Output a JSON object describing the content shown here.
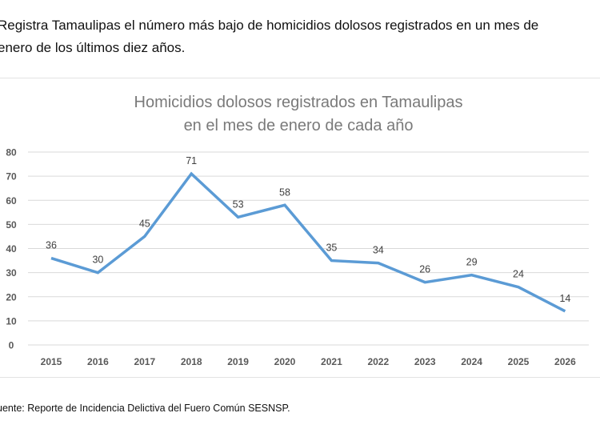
{
  "heading": {
    "line1": "Registra Tamaulipas el número más bajo de homicidios dolosos registrados en un mes de",
    "line2": "enero de los últimos diez años."
  },
  "source": "uente: Reporte de Incidencia Delictiva del Fuero Común SESNSP.",
  "chart_data": {
    "type": "line",
    "title": [
      "Homicidios dolosos registrados en Tamaulipas",
      "en el mes de enero de cada año"
    ],
    "categories": [
      "2015",
      "2016",
      "2017",
      "2018",
      "2019",
      "2020",
      "2021",
      "2022",
      "2023",
      "2024",
      "2025",
      "2026"
    ],
    "values": [
      36,
      30,
      45,
      71,
      53,
      58,
      35,
      34,
      26,
      29,
      24,
      14
    ],
    "ylim": [
      0,
      80
    ],
    "yticks": [
      0,
      10,
      20,
      30,
      40,
      50,
      60,
      70,
      80
    ],
    "grid": true,
    "data_labels": true,
    "line_color": "#5b9bd5"
  }
}
